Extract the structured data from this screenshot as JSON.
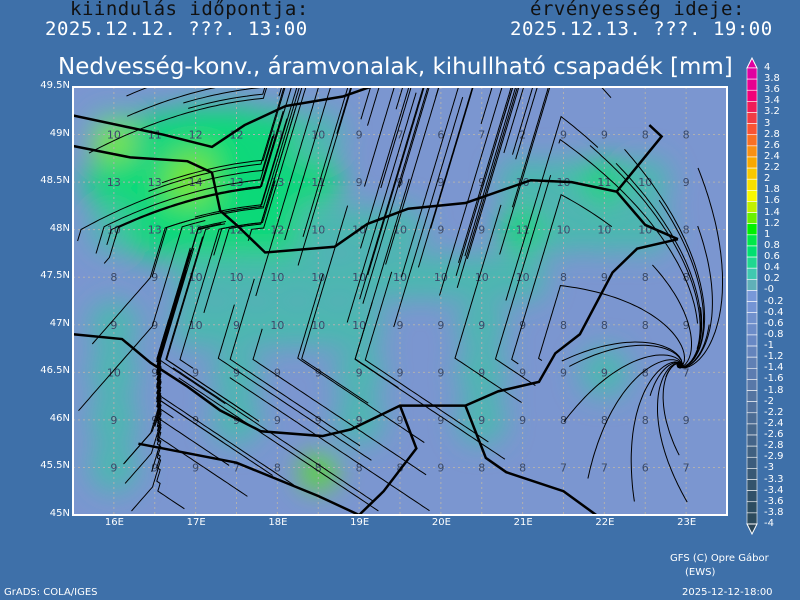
{
  "header": {
    "init_label": "kiindulás időpontja:",
    "init_time": "2025.12.12. ???. 13:00",
    "valid_label": "érvényesség ideje:",
    "valid_time": "2025.12.13. ???. 19:00",
    "title": "Nedvesség-konv., áramvonalak, kihullható csapadék [mm]"
  },
  "map": {
    "lat_labels": [
      "49.5N",
      "49N",
      "48.5N",
      "48N",
      "47.5N",
      "47N",
      "46.5N",
      "46N",
      "45.5N",
      "45N"
    ],
    "lat_values": [
      49.5,
      49,
      48.5,
      48,
      47.5,
      47,
      46.5,
      46,
      45.5,
      45
    ],
    "lon_labels": [
      "16E",
      "17E",
      "18E",
      "19E",
      "20E",
      "21E",
      "22E",
      "23E"
    ],
    "lon_values": [
      16,
      17,
      18,
      19,
      20,
      21,
      22,
      23
    ],
    "extent": {
      "lon": [
        15.5,
        23.5
      ],
      "lat": [
        45,
        49.5
      ]
    },
    "grid_lons": [
      16,
      16.5,
      17,
      17.5,
      18,
      18.5,
      19,
      19.5,
      20,
      20.5,
      21,
      21.5,
      22,
      22.5,
      23
    ],
    "grid_rows": [
      {
        "lat": 49,
        "values": [
          "10",
          "11",
          "12",
          "12",
          "11",
          "10",
          "9",
          "7",
          "6",
          "7",
          "2",
          "9",
          "9",
          "8",
          "8"
        ]
      },
      {
        "lat": 48.5,
        "values": [
          "13",
          "13",
          "14",
          "13",
          "13",
          "11",
          "9",
          "9",
          "9",
          "9",
          "10",
          "10",
          "11",
          "10",
          "9"
        ]
      },
      {
        "lat": 48,
        "values": [
          "10",
          "13",
          "13",
          "12",
          "12",
          "10",
          "10",
          "10",
          "9",
          "9",
          "11",
          "10",
          "10",
          "10",
          "8"
        ]
      },
      {
        "lat": 47.5,
        "values": [
          "8",
          "9",
          "10",
          "10",
          "10",
          "10",
          "10",
          "10",
          "10",
          "10",
          "10",
          "8",
          "9",
          "8",
          "8"
        ]
      },
      {
        "lat": 47,
        "values": [
          "9",
          "9",
          "10",
          "9",
          "10",
          "10",
          "10",
          "9",
          "9",
          "9",
          "9",
          "8",
          "8",
          "8",
          "9"
        ]
      },
      {
        "lat": 46.5,
        "values": [
          "10",
          "9",
          "9",
          "9",
          "9",
          "9",
          "9",
          "9",
          "9",
          "9",
          "9",
          "9",
          "9",
          "8",
          "7"
        ]
      },
      {
        "lat": 46,
        "values": [
          "9",
          "9",
          "9",
          "9",
          "9",
          "9",
          "9",
          "9",
          "9",
          "9",
          "9",
          "8",
          "8",
          "8",
          "9"
        ]
      },
      {
        "lat": 45.5,
        "values": [
          "9",
          "9",
          "9",
          "7",
          "8",
          "8",
          "8",
          "8",
          "9",
          "8",
          "8",
          "7",
          "7",
          "6",
          "7"
        ]
      }
    ],
    "colors": {
      "background": "#7b96d0",
      "moist": "#00e070",
      "max": "#80f000",
      "teal": "#40c0a8",
      "streamline": "#000000",
      "border": "#000000"
    }
  },
  "colorbar": {
    "labels": [
      "4",
      "3.8",
      "3.6",
      "3.4",
      "3.2",
      "3",
      "2.8",
      "2.6",
      "2.4",
      "2.2",
      "2",
      "1.8",
      "1.6",
      "1.4",
      "1.2",
      "1",
      "0.8",
      "0.6",
      "0.4",
      "0.2",
      "-0",
      "-0.2",
      "-0.4",
      "-0.6",
      "-0.8",
      "-1",
      "-1.2",
      "-1.4",
      "-1.6",
      "-1.8",
      "-2",
      "-2.2",
      "-2.4",
      "-2.6",
      "-2.8",
      "-2.9",
      "-3",
      "-3.3",
      "-3.4",
      "-3.6",
      "-3.8",
      "-4"
    ],
    "colors": [
      "#e000a0",
      "#e80090",
      "#f00078",
      "#f01c58",
      "#f03c44",
      "#f85434",
      "#f87024",
      "#f89014",
      "#f8a800",
      "#f8c800",
      "#f8e000",
      "#f8f800",
      "#c0f000",
      "#68f000",
      "#00f000",
      "#00e848",
      "#00e070",
      "#20d890",
      "#40c8b0",
      "#60b0b8",
      "#7898d8",
      "#7494d4",
      "#7090cc",
      "#6c8cc8",
      "#6888c4",
      "#6484bc",
      "#6080b4",
      "#5c7cb0",
      "#5878a8",
      "#5474a0",
      "#50709c",
      "#4c6c94",
      "#48688c",
      "#446488",
      "#406080",
      "#3c5c7c",
      "#385874",
      "#34546c",
      "#305068",
      "#2c4c60",
      "#2c4a5c"
    ],
    "top_color": "#e000a0",
    "bottom_color": "#2c4658"
  },
  "footer": {
    "credit": "GFS (C) Opre Gábor",
    "credit_sub": "(EWS)",
    "grads": "GrADS: COLA/IGES",
    "timestamp": "2025-12-12-18:00"
  }
}
